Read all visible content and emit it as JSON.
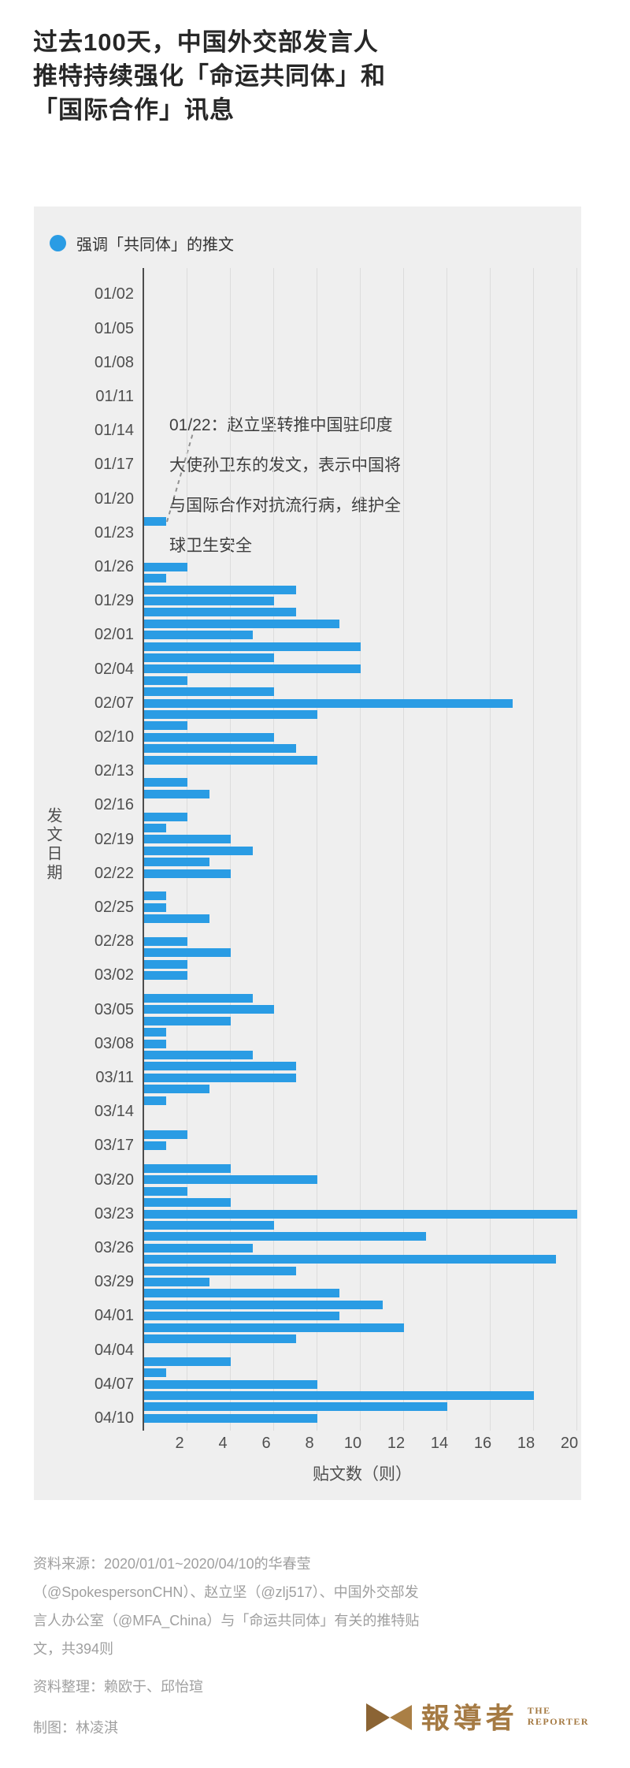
{
  "title": {
    "lines": [
      "过去100天，中国外交部发言人",
      "推特持续强化「命运共同体」和",
      "「国际合作」讯息"
    ]
  },
  "legend": {
    "label": "强调「共同体」的推文"
  },
  "annotation": {
    "lines": [
      "01/22：赵立坚转推中国驻印度",
      "大使孙卫东的发文，表示中国将",
      "与国际合作对抗流行病，维护全",
      "球卫生安全"
    ]
  },
  "chart_data": {
    "type": "bar",
    "orientation": "horizontal",
    "xlabel": "贴文数（则）",
    "ylabel": "发文日期",
    "xlim": [
      0,
      21
    ],
    "x_ticks": [
      2,
      4,
      6,
      8,
      10,
      12,
      14,
      16,
      18,
      20
    ],
    "grid": true,
    "y_label_every": 3,
    "bar_color": "#2a9ce4",
    "panel_bg": "#efefef",
    "total_posts": 394,
    "categories": [
      "01/01",
      "01/02",
      "01/03",
      "01/04",
      "01/05",
      "01/06",
      "01/07",
      "01/08",
      "01/09",
      "01/10",
      "01/11",
      "01/12",
      "01/13",
      "01/14",
      "01/15",
      "01/16",
      "01/17",
      "01/18",
      "01/19",
      "01/20",
      "01/21",
      "01/22",
      "01/23",
      "01/24",
      "01/25",
      "01/26",
      "01/27",
      "01/28",
      "01/29",
      "01/30",
      "01/31",
      "02/01",
      "02/02",
      "02/03",
      "02/04",
      "02/05",
      "02/06",
      "02/07",
      "02/08",
      "02/09",
      "02/10",
      "02/11",
      "02/12",
      "02/13",
      "02/14",
      "02/15",
      "02/16",
      "02/17",
      "02/18",
      "02/19",
      "02/20",
      "02/21",
      "02/22",
      "02/23",
      "02/24",
      "02/25",
      "02/26",
      "02/27",
      "02/28",
      "02/29",
      "03/01",
      "03/02",
      "03/03",
      "03/04",
      "03/05",
      "03/06",
      "03/07",
      "03/08",
      "03/09",
      "03/10",
      "03/11",
      "03/12",
      "03/13",
      "03/14",
      "03/15",
      "03/16",
      "03/17",
      "03/18",
      "03/19",
      "03/20",
      "03/21",
      "03/22",
      "03/23",
      "03/24",
      "03/25",
      "03/26",
      "03/27",
      "03/28",
      "03/29",
      "03/30",
      "03/31",
      "04/01",
      "04/02",
      "04/03",
      "04/04",
      "04/05",
      "04/06",
      "04/07",
      "04/08",
      "04/09",
      "04/10"
    ],
    "values": [
      0,
      0,
      0,
      0,
      0,
      0,
      0,
      0,
      0,
      0,
      0,
      0,
      0,
      0,
      0,
      0,
      0,
      0,
      0,
      0,
      0,
      1,
      0,
      0,
      0,
      2,
      1,
      7,
      6,
      7,
      9,
      5,
      10,
      6,
      10,
      2,
      6,
      17,
      8,
      2,
      6,
      7,
      8,
      0,
      2,
      3,
      0,
      2,
      1,
      4,
      5,
      3,
      4,
      0,
      1,
      1,
      3,
      0,
      2,
      4,
      2,
      2,
      0,
      5,
      6,
      4,
      1,
      1,
      5,
      7,
      7,
      3,
      1,
      0,
      0,
      2,
      1,
      0,
      4,
      8,
      2,
      4,
      20,
      6,
      13,
      5,
      19,
      7,
      3,
      9,
      11,
      9,
      12,
      7,
      0,
      4,
      1,
      8,
      18,
      14,
      8
    ]
  },
  "footer": {
    "source_lines": [
      "资料来源：2020/01/01~2020/04/10的华春莹",
      "（@SpokespersonCHN）、赵立坚（@zlj517）、中国外交部发",
      "言人办公室（@MFA_China）与「命运共同体」有关的推特贴",
      "文，共394则"
    ],
    "credit_data": "资料整理：赖欧于、邱怡瑄",
    "credit_chart": "制图：林凌淇"
  },
  "logo": {
    "zh": "報導者",
    "en_line1": "THE",
    "en_line2": "REPORTER",
    "color": "#a57a43",
    "icon_dark": "#8b6434",
    "icon_light": "#aa7f45"
  }
}
